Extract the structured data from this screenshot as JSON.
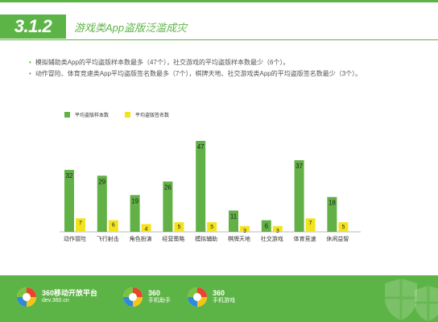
{
  "header": {
    "section_number": "3.1.2",
    "title": "游戏类App盗版泛滥成灾"
  },
  "bullets": [
    "模拟辅助类App的平均盗版样本数最多（47个），社交游戏的平均盗版样本数最少（6个）。",
    "动作冒险、体育竞速类App平均盗版签名数最多（7个），棋牌天地、社交游戏类App的平均盗版签名数最少（3个）。"
  ],
  "colors": {
    "accent": "#5db446",
    "series_samples": "#62b146",
    "series_signatures": "#f3e31e"
  },
  "chart_data": {
    "type": "bar",
    "categories": [
      "动作冒险",
      "飞行射击",
      "角色扮演",
      "经营策略",
      "模拟辅助",
      "棋牌天地",
      "社交游戏",
      "体育竞速",
      "休闲益智"
    ],
    "series": [
      {
        "name": "平均盗版样本数",
        "values": [
          32,
          29,
          19,
          26,
          47,
          11,
          6,
          37,
          18
        ]
      },
      {
        "name": "平均盗版签名数",
        "values": [
          7,
          6,
          4,
          5,
          5,
          3,
          3,
          7,
          5
        ]
      }
    ],
    "ylim": [
      0,
      47
    ],
    "grid": false,
    "legend": "top-left"
  },
  "footer": {
    "brands": [
      {
        "icon": "360-ball-logo",
        "line1": "360移动开放平台",
        "line2": "dev.360.cn"
      },
      {
        "icon": "360-ball-logo",
        "line1": "360",
        "line2": "手机助手"
      },
      {
        "icon": "360-ball-logo",
        "line1": "360",
        "line2": "手机游戏"
      }
    ]
  }
}
